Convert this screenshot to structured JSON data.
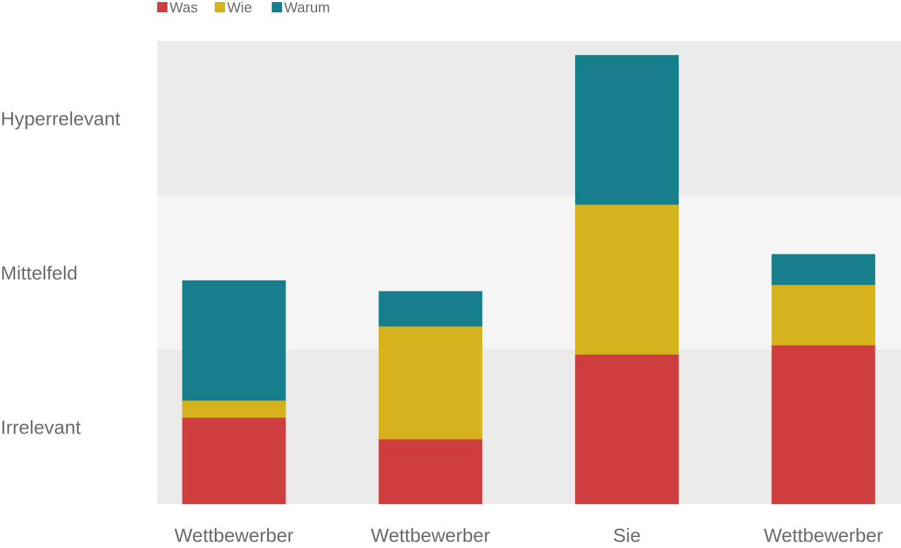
{
  "chart_data": {
    "type": "bar",
    "stacked": true,
    "categories": [
      "Wettbewerber",
      "Wettbewerber",
      "Sie",
      "Wettbewerber"
    ],
    "series": [
      {
        "name": "Was",
        "color": "#cf3f3f",
        "values": [
          0.56,
          0.42,
          0.97,
          1.03
        ]
      },
      {
        "name": "Wie",
        "color": "#d6b31c",
        "values": [
          0.11,
          0.73,
          0.97,
          0.39
        ]
      },
      {
        "name": "Warum",
        "color": "#177f8b",
        "values": [
          0.78,
          0.23,
          0.97,
          0.2
        ]
      }
    ],
    "bands": [
      {
        "label": "Irrelevant",
        "from": 0,
        "to": 1.0,
        "color": "#ebebeb"
      },
      {
        "label": "Mittelfeld",
        "from": 1.0,
        "to": 2.0,
        "color": "#f5f5f5"
      },
      {
        "label": "Hyperrelevant",
        "from": 2.0,
        "to": 3.0,
        "color": "#ebebeb"
      }
    ],
    "ylim": [
      0,
      3.0
    ],
    "grid": false,
    "legend_position": "top-left"
  }
}
